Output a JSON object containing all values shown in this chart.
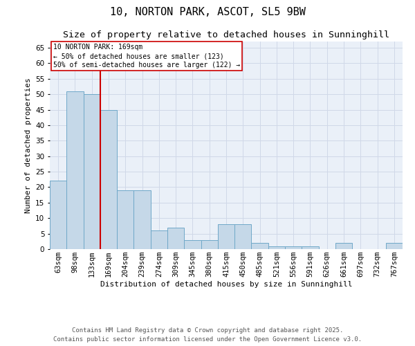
{
  "title_line1": "10, NORTON PARK, ASCOT, SL5 9BW",
  "title_line2": "Size of property relative to detached houses in Sunninghill",
  "xlabel": "Distribution of detached houses by size in Sunninghill",
  "ylabel": "Number of detached properties",
  "categories": [
    "63sqm",
    "98sqm",
    "133sqm",
    "169sqm",
    "204sqm",
    "239sqm",
    "274sqm",
    "309sqm",
    "345sqm",
    "380sqm",
    "415sqm",
    "450sqm",
    "485sqm",
    "521sqm",
    "556sqm",
    "591sqm",
    "626sqm",
    "661sqm",
    "697sqm",
    "732sqm",
    "767sqm"
  ],
  "values": [
    22,
    51,
    50,
    45,
    19,
    19,
    6,
    7,
    3,
    3,
    8,
    8,
    2,
    1,
    1,
    1,
    0,
    2,
    0,
    0,
    2
  ],
  "bar_color": "#c5d8e8",
  "bar_edge_color": "#6fa8c8",
  "grid_color": "#d0d8e8",
  "bg_color": "#eaf0f8",
  "vline_color": "#cc0000",
  "annotation_text": "10 NORTON PARK: 169sqm\n← 50% of detached houses are smaller (123)\n50% of semi-detached houses are larger (122) →",
  "annotation_box_color": "#cc0000",
  "footer_text": "Contains HM Land Registry data © Crown copyright and database right 2025.\nContains public sector information licensed under the Open Government Licence v3.0.",
  "ylim": [
    0,
    67
  ],
  "yticks": [
    0,
    5,
    10,
    15,
    20,
    25,
    30,
    35,
    40,
    45,
    50,
    55,
    60,
    65
  ],
  "title_fontsize": 11,
  "subtitle_fontsize": 9.5,
  "footer_fontsize": 6.5,
  "axis_label_fontsize": 8,
  "tick_fontsize": 7.5,
  "annotation_fontsize": 7
}
